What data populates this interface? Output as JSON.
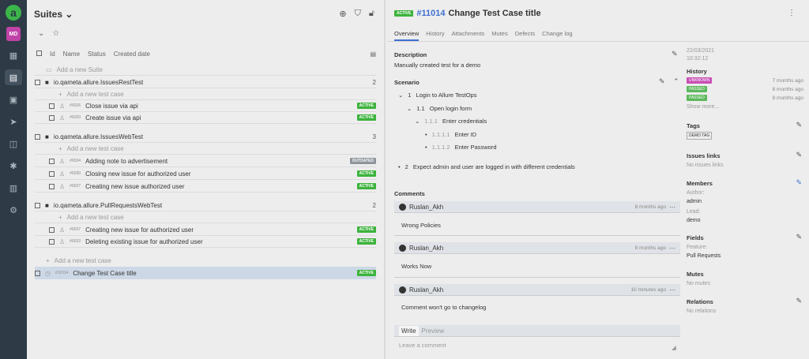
{
  "sidebar": {
    "avatar": "MD",
    "items": [
      "dashboard-icon",
      "test-cases-icon",
      "launches-icon",
      "jobs-icon",
      "analytics-icon",
      "defects-icon",
      "files-icon",
      "settings-icon"
    ]
  },
  "left": {
    "title": "Suites",
    "columns": [
      "Id",
      "Name",
      "Status",
      "Created date"
    ],
    "add_suite": "Add a new Suite",
    "add_case": "Add a new test case",
    "groups": [
      {
        "name": "io.qameta.allure.IssuesRestTest",
        "count": "2",
        "cases": [
          {
            "id": "#6026",
            "name": "Close issue via api",
            "status": "ACTIVE"
          },
          {
            "id": "#6020",
            "name": "Create issue via api",
            "status": "ACTIVE"
          }
        ]
      },
      {
        "name": "io.qameta.allure.IssuesWebTest",
        "count": "3",
        "cases": [
          {
            "id": "#6034",
            "name": "Adding note to advertisement",
            "status": "OUTDATED"
          },
          {
            "id": "#6030",
            "name": "Closing new issue for authorized user",
            "status": "ACTIVE"
          },
          {
            "id": "#6027",
            "name": "Creating new issue authorized user",
            "status": "ACTIVE"
          }
        ]
      },
      {
        "name": "io.qameta.allure.PullRequestsWebTest",
        "count": "2",
        "cases": [
          {
            "id": "#6037",
            "name": "Creating new issue for authorized user",
            "status": "ACTIVE"
          },
          {
            "id": "#6033",
            "name": "Deleting existing issue for authorized user",
            "status": "ACTIVE"
          }
        ]
      }
    ],
    "selected": {
      "id": "#11014",
      "name": "Change Test Case title",
      "status": "ACTIVE"
    }
  },
  "detail": {
    "status": "ACTIVE",
    "id": "#11014",
    "title": "Change Test Case title",
    "tabs": [
      "Overview",
      "History",
      "Attachments",
      "Mutes",
      "Defects",
      "Change log"
    ],
    "description_label": "Description",
    "description": "Manually created test for a demo",
    "scenario_label": "Scenario",
    "steps": [
      {
        "num": "1",
        "text": "Login to Allure TestOps"
      },
      {
        "num": "1.1",
        "text": "Open login form"
      },
      {
        "num": "1.1.1",
        "text": "Enter credentials"
      },
      {
        "num": "1.1.1.1",
        "text": "Enter ID"
      },
      {
        "num": "1.1.1.2",
        "text": "Enter Password"
      },
      {
        "num": "2",
        "text": "Expect admin and user are logged in with different credentials"
      }
    ],
    "comments_label": "Comments",
    "comments": [
      {
        "author": "Ruslan_Akh",
        "time": "8 months ago",
        "text": "Wrong Policies"
      },
      {
        "author": "Ruslan_Akh",
        "time": "8 months ago",
        "text": "Works Now"
      },
      {
        "author": "Ruslan_Akh",
        "time": "10 minutes ago",
        "text": "Comment won't go to changelog"
      }
    ],
    "write_tab": "Write",
    "preview_tab": "Preview",
    "comment_placeholder": "Leave a comment"
  },
  "side": {
    "date": "22/03/2021",
    "time": "10:32:12",
    "history_label": "History",
    "history": [
      {
        "status": "UNKNOWN",
        "time": "7 months ago",
        "color": "#c94fb5"
      },
      {
        "status": "PASSED",
        "time": "8 months ago",
        "color": "#5cb85c"
      },
      {
        "status": "PASSED",
        "time": "8 months ago",
        "color": "#5cb85c"
      }
    ],
    "show_more": "Show more...",
    "tags_label": "Tags",
    "tag": "DEMO TAG",
    "issues_label": "Issues links",
    "issues_empty": "No issues links",
    "members_label": "Members",
    "author_label": "Author:",
    "author": "admin",
    "lead_label": "Lead:",
    "lead": "demo",
    "fields_label": "Fields",
    "feature_label": "Feature:",
    "feature": "Pull Requests",
    "mutes_label": "Mutes",
    "mutes_empty": "No mutes",
    "relations_label": "Relations",
    "relations_empty": "No relations"
  },
  "colors": {
    "active": "#3cb33c",
    "outdated": "#8e949b",
    "accent": "#3f6fd1",
    "sidebar": "#2e3b47"
  }
}
